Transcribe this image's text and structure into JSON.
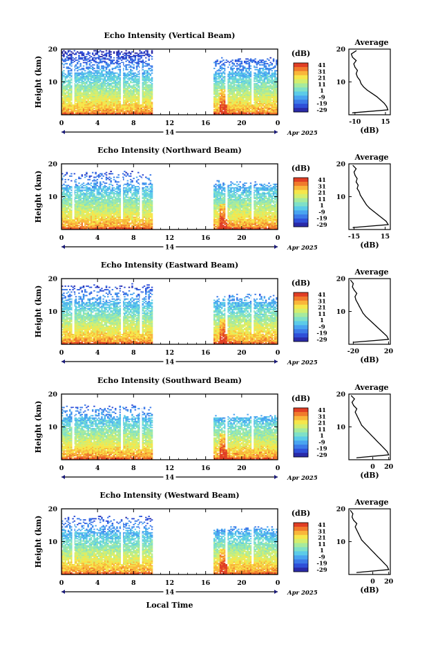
{
  "colors": {
    "palette": [
      "#2a2aa8",
      "#2f4fd8",
      "#3c7ae8",
      "#49a4f0",
      "#5ccbe8",
      "#7fe0c8",
      "#a6ea9e",
      "#d4ee6e",
      "#f6e64a",
      "#f9b63a",
      "#f07a2c",
      "#e03e24"
    ]
  },
  "figure": {
    "x_axis_label": "Local Time",
    "day_label": "14",
    "date_label": "Apr 2025"
  },
  "chart_data": [
    {
      "type": "heatmap",
      "title": "Echo Intensity (Vertical Beam)",
      "ylabel": "Height (km)",
      "xlabel": "Local Time",
      "xlim": [
        0,
        24
      ],
      "ylim": [
        0,
        20
      ],
      "xticks": [
        "0",
        "4",
        "8",
        "12",
        "16",
        "20",
        "0"
      ],
      "yticks": [
        "10",
        "20"
      ],
      "colorbar": {
        "unit": "(dB)",
        "range": [
          -29,
          41
        ],
        "ticks": [
          "41",
          "31",
          "21",
          "11",
          "1",
          "-9",
          "-19",
          "-29"
        ]
      },
      "data_gap_hours": [
        10,
        16.8
      ],
      "profile": {
        "title": "Average",
        "xlabel": "(dB)",
        "xticks": [
          "-10",
          "15"
        ],
        "xlim": [
          -15,
          19
        ],
        "points": [
          [
            -12,
            0.6
          ],
          [
            17,
            1.5
          ],
          [
            16,
            2.5
          ],
          [
            14,
            3.5
          ],
          [
            11,
            4.5
          ],
          [
            8,
            5.5
          ],
          [
            4,
            6.5
          ],
          [
            0,
            7.5
          ],
          [
            -3,
            8.5
          ],
          [
            -5,
            9.5
          ],
          [
            -6,
            10.5
          ],
          [
            -8,
            11.5
          ],
          [
            -9,
            12.5
          ],
          [
            -8,
            13.5
          ],
          [
            -10,
            14.5
          ],
          [
            -11,
            15.5
          ],
          [
            -9,
            16.5
          ],
          [
            -12,
            17.5
          ],
          [
            -13,
            18.5
          ],
          [
            -9,
            19.5
          ]
        ]
      },
      "date": "Apr 2025"
    },
    {
      "type": "heatmap",
      "title": "Echo Intensity (Northward Beam)",
      "ylabel": "Height (km)",
      "xlabel": "Local Time",
      "xlim": [
        0,
        24
      ],
      "ylim": [
        0,
        20
      ],
      "xticks": [
        "0",
        "4",
        "8",
        "12",
        "16",
        "20",
        "0"
      ],
      "yticks": [
        "10",
        "20"
      ],
      "colorbar": {
        "unit": "(dB)",
        "range": [
          -29,
          41
        ],
        "ticks": [
          "41",
          "31",
          "21",
          "11",
          "1",
          "-9",
          "-19",
          "-29"
        ]
      },
      "data_gap_hours": [
        10,
        16.8
      ],
      "profile": {
        "title": "Average",
        "xlabel": "(dB)",
        "xticks": [
          "-15",
          "15"
        ],
        "xlim": [
          -20,
          20
        ],
        "points": [
          [
            -16,
            0.6
          ],
          [
            18,
            1.5
          ],
          [
            16,
            2.5
          ],
          [
            12,
            3.5
          ],
          [
            8,
            4.5
          ],
          [
            4,
            5.5
          ],
          [
            0,
            6.5
          ],
          [
            -3,
            7.5
          ],
          [
            -5,
            8.5
          ],
          [
            -7,
            9.5
          ],
          [
            -9,
            10.5
          ],
          [
            -10,
            11.5
          ],
          [
            -12,
            12.5
          ],
          [
            -11,
            13.5
          ],
          [
            -13,
            14.5
          ],
          [
            -12,
            15.5
          ],
          [
            -14,
            16.5
          ],
          [
            -15,
            17.5
          ],
          [
            -13,
            18.5
          ],
          [
            -16,
            19.5
          ]
        ]
      },
      "date": "Apr 2025"
    },
    {
      "type": "heatmap",
      "title": "Echo Intensity (Eastward Beam)",
      "ylabel": "Height (km)",
      "xlabel": "Local Time",
      "xlim": [
        0,
        24
      ],
      "ylim": [
        0,
        20
      ],
      "xticks": [
        "0",
        "4",
        "8",
        "12",
        "16",
        "20",
        "0"
      ],
      "yticks": [
        "10",
        "20"
      ],
      "colorbar": {
        "unit": "(dB)",
        "range": [
          -29,
          41
        ],
        "ticks": [
          "41",
          "31",
          "21",
          "11",
          "1",
          "-9",
          "-19",
          "-29"
        ]
      },
      "data_gap_hours": [
        10,
        16.8
      ],
      "profile": {
        "title": "Average",
        "xlabel": "(dB)",
        "xticks": [
          "-20",
          "20"
        ],
        "xlim": [
          -25,
          22
        ],
        "points": [
          [
            -20,
            0.6
          ],
          [
            20,
            1.5
          ],
          [
            18,
            2.5
          ],
          [
            14,
            3.5
          ],
          [
            10,
            4.5
          ],
          [
            6,
            5.5
          ],
          [
            2,
            6.5
          ],
          [
            -2,
            7.5
          ],
          [
            -6,
            8.5
          ],
          [
            -9,
            9.5
          ],
          [
            -11,
            10.5
          ],
          [
            -13,
            11.5
          ],
          [
            -15,
            12.5
          ],
          [
            -17,
            13.5
          ],
          [
            -18,
            14.5
          ],
          [
            -16,
            15.5
          ],
          [
            -19,
            16.5
          ],
          [
            -21,
            17.5
          ],
          [
            -20,
            18.5
          ],
          [
            -23,
            19.5
          ]
        ]
      },
      "date": "Apr 2025"
    },
    {
      "type": "heatmap",
      "title": "Echo Intensity (Southward Beam)",
      "ylabel": "Height (km)",
      "xlabel": "Local Time",
      "xlim": [
        0,
        24
      ],
      "ylim": [
        0,
        20
      ],
      "xticks": [
        "0",
        "4",
        "8",
        "12",
        "16",
        "20",
        "0"
      ],
      "yticks": [
        "10",
        "20"
      ],
      "colorbar": {
        "unit": "(dB)",
        "range": [
          -29,
          41
        ],
        "ticks": [
          "41",
          "31",
          "21",
          "11",
          "1",
          "-9",
          "-19",
          "-29"
        ]
      },
      "data_gap_hours": [
        10,
        16.8
      ],
      "profile": {
        "title": "Average",
        "xlabel": "(dB)",
        "xticks": [
          "0",
          "20"
        ],
        "xlim": [
          -30,
          22
        ],
        "points": [
          [
            -20,
            0.6
          ],
          [
            20,
            1.5
          ],
          [
            18,
            2.5
          ],
          [
            14,
            3.5
          ],
          [
            10,
            4.5
          ],
          [
            6,
            5.5
          ],
          [
            2,
            6.5
          ],
          [
            -2,
            7.5
          ],
          [
            -6,
            8.5
          ],
          [
            -10,
            9.5
          ],
          [
            -14,
            10.5
          ],
          [
            -16,
            11.5
          ],
          [
            -18,
            12.5
          ],
          [
            -20,
            13.5
          ],
          [
            -22,
            14.5
          ],
          [
            -20,
            15.5
          ],
          [
            -24,
            16.5
          ],
          [
            -26,
            17.5
          ],
          [
            -23,
            18.5
          ],
          [
            -27,
            19.5
          ]
        ]
      },
      "date": "Apr 2025"
    },
    {
      "type": "heatmap",
      "title": "Echo Intensity (Westward Beam)",
      "ylabel": "Height (km)",
      "xlabel": "Local Time",
      "xlim": [
        0,
        24
      ],
      "ylim": [
        0,
        20
      ],
      "xticks": [
        "0",
        "4",
        "8",
        "12",
        "16",
        "20",
        "0"
      ],
      "yticks": [
        "10",
        "20"
      ],
      "colorbar": {
        "unit": "(dB)",
        "range": [
          -29,
          41
        ],
        "ticks": [
          "41",
          "31",
          "21",
          "11",
          "1",
          "-9",
          "-19",
          "-29"
        ]
      },
      "data_gap_hours": [
        10,
        16.8
      ],
      "profile": {
        "title": "Average",
        "xlabel": "(dB)",
        "xticks": [
          "0",
          "20"
        ],
        "xlim": [
          -30,
          22
        ],
        "points": [
          [
            -20,
            0.6
          ],
          [
            20,
            1.5
          ],
          [
            18,
            2.5
          ],
          [
            14,
            3.5
          ],
          [
            10,
            4.5
          ],
          [
            6,
            5.5
          ],
          [
            2,
            6.5
          ],
          [
            -2,
            7.5
          ],
          [
            -6,
            8.5
          ],
          [
            -10,
            9.5
          ],
          [
            -14,
            10.5
          ],
          [
            -16,
            11.5
          ],
          [
            -18,
            12.5
          ],
          [
            -20,
            13.5
          ],
          [
            -22,
            14.5
          ],
          [
            -20,
            15.5
          ],
          [
            -24,
            16.5
          ],
          [
            -26,
            17.5
          ],
          [
            -25,
            18.5
          ],
          [
            -28,
            19.5
          ]
        ]
      },
      "date": "Apr 2025"
    }
  ]
}
